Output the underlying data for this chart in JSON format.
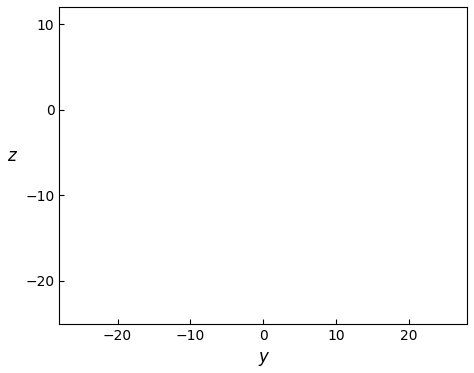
{
  "title": "",
  "xlabel": "y",
  "ylabel": "z",
  "xlim": [
    -28,
    28
  ],
  "ylim": [
    -25,
    12
  ],
  "xticks": [
    -20,
    -10,
    0,
    10,
    20
  ],
  "yticks": [
    -20,
    -10,
    0,
    10
  ],
  "b": 2,
  "c": 5,
  "colors": [
    "blue",
    "green",
    "red"
  ],
  "figsize": [
    4.74,
    3.73
  ],
  "dpi": 100
}
